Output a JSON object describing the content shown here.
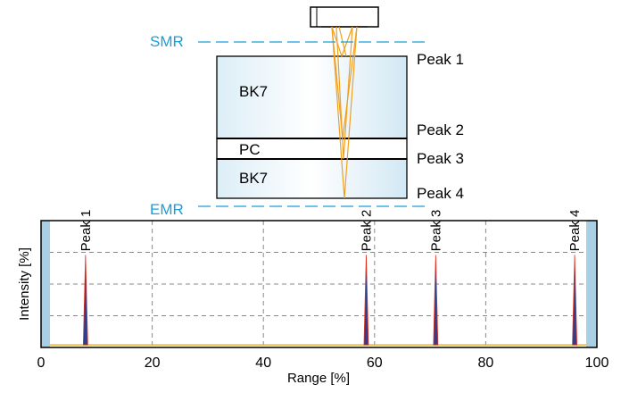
{
  "diagram": {
    "markers": {
      "smr": "SMR",
      "emr": "EMR"
    },
    "layers": [
      {
        "name": "BK7"
      },
      {
        "name": "PC"
      },
      {
        "name": "BK7"
      }
    ],
    "peak_labels": [
      "Peak 1",
      "Peak 2",
      "Peak 3",
      "Peak 4"
    ]
  },
  "chart_data": {
    "type": "line",
    "xlabel": "Range [%]",
    "ylabel": "Intensity [%]",
    "xlim": [
      0,
      100
    ],
    "ylim": [
      0,
      100
    ],
    "x_ticks": [
      0,
      20,
      40,
      60,
      80,
      100
    ],
    "grid": true,
    "peaks": [
      {
        "label": "Peak 1",
        "x": 8,
        "height": 73
      },
      {
        "label": "Peak 2",
        "x": 58.5,
        "height": 73
      },
      {
        "label": "Peak 3",
        "x": 71,
        "height": 73
      },
      {
        "label": "Peak 4",
        "x": 96,
        "height": 73
      }
    ],
    "baseline": 2,
    "colors": {
      "peak_fill": "#2e3f8f",
      "peak_edge": "#e0301e",
      "baseline": "#f0b030",
      "range_edge": "#a8cfe3",
      "marker": "#1a9ed8"
    }
  }
}
